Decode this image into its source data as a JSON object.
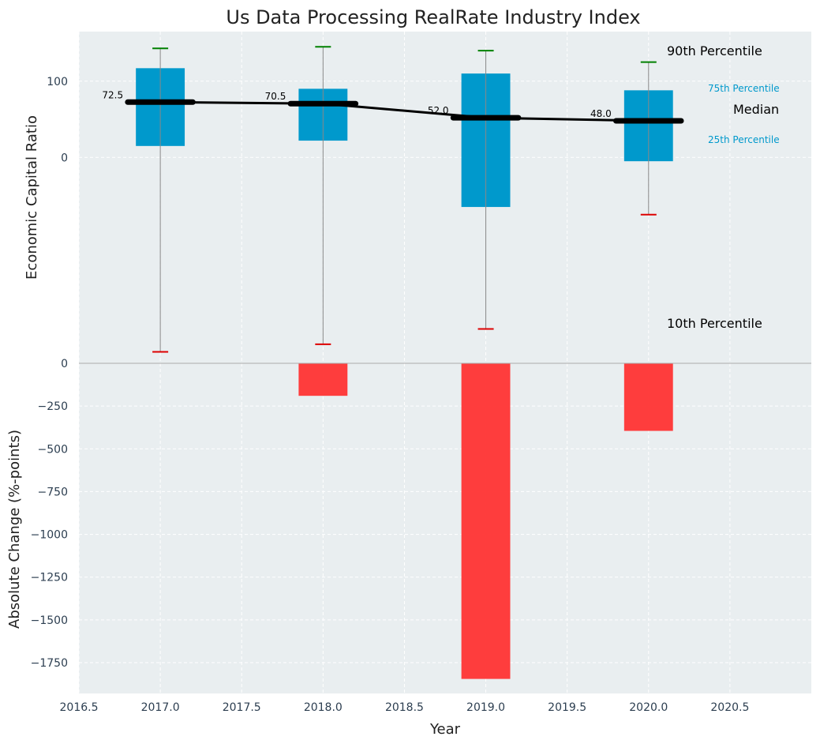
{
  "chart_data": [
    {
      "type": "box",
      "title": "Us Data Processing RealRate Industry Index",
      "ylabel": "Economic Capital Ratio",
      "x": [
        2017,
        2018,
        2019,
        2020
      ],
      "p10": [
        -255,
        -245,
        -225,
        -75
      ],
      "p25": [
        15,
        22,
        -65,
        -5
      ],
      "median": [
        72.5,
        70.5,
        52.0,
        48.0
      ],
      "p75": [
        117,
        90,
        110,
        88
      ],
      "p90": [
        143,
        145,
        140,
        125
      ],
      "median_labels": [
        "72.5",
        "70.5",
        "52.0",
        "48.0"
      ],
      "yticks": [
        0,
        100
      ],
      "ylim": [
        -270,
        165
      ],
      "colors": {
        "box": "#0099cc",
        "median": "#000000",
        "whisker": "#888888",
        "p90_cap": "#008000",
        "p10_cap": "#dd0000"
      },
      "annotations": {
        "p90": "90th Percentile",
        "p75": "75th Percentile",
        "median": "Median",
        "p25": "25th Percentile",
        "p10": "10th Percentile"
      }
    },
    {
      "type": "bar",
      "xlabel": "Year",
      "ylabel": "Absolute Change (%-points)",
      "x": [
        2017,
        2018,
        2019,
        2020
      ],
      "values": [
        0,
        -190,
        -1845,
        -395
      ],
      "ylim": [
        -1930,
        0
      ],
      "yticks": [
        0,
        -250,
        -500,
        -750,
        -1000,
        -1250,
        -1500,
        -1750
      ],
      "ytick_labels": [
        "0",
        "−250",
        "−500",
        "−750",
        "−1000",
        "−1250",
        "−1500",
        "−1750"
      ],
      "xlim": [
        2016.5,
        2021.0
      ],
      "xticks": [
        2016.5,
        2017.0,
        2017.5,
        2018.0,
        2018.5,
        2019.0,
        2019.5,
        2020.0,
        2020.5
      ],
      "xtick_labels": [
        "2016.5",
        "2017.0",
        "2017.5",
        "2018.0",
        "2018.5",
        "2019.0",
        "2019.5",
        "2020.0",
        "2020.5"
      ],
      "colors": {
        "bar": "#ff3333"
      }
    }
  ],
  "style": {
    "plot_bg": "#e9eef0",
    "grid": "#ffffff"
  }
}
